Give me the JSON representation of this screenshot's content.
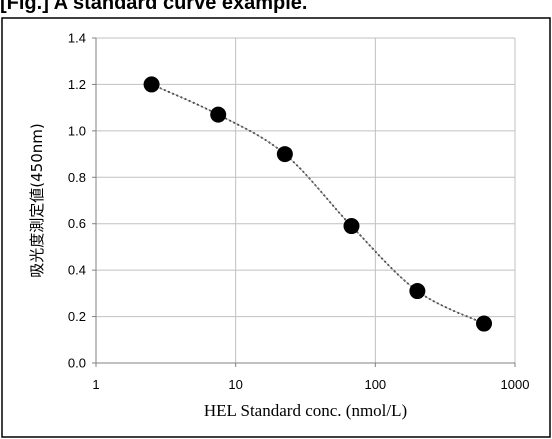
{
  "chart_data": {
    "type": "scatter",
    "title": "[Fig.] A standard curve example.",
    "xlabel": "HEL Standard conc. (nmol/L)",
    "ylabel": "吸光度測定値(450nm)",
    "x_scale": "log",
    "xlim": [
      1,
      1000
    ],
    "ylim": [
      0,
      1.4
    ],
    "x_ticks": [
      "1",
      "10",
      "100",
      "1000"
    ],
    "y_ticks": [
      "0.0",
      "0.2",
      "0.4",
      "0.6",
      "0.8",
      "1.0",
      "1.2",
      "1.4"
    ],
    "grid": true,
    "legend": "none",
    "series": [
      {
        "x": [
          2.5,
          7.5,
          22.5,
          67.5,
          200,
          600
        ],
        "y": [
          1.2,
          1.07,
          0.9,
          0.59,
          0.31,
          0.17
        ],
        "marker": "filled-circle",
        "line": "dotted-fit-curve"
      }
    ],
    "colors": {
      "marker": "#000000",
      "grid": "#c0c0c0",
      "axis": "#808080",
      "frame": "#000000"
    }
  }
}
